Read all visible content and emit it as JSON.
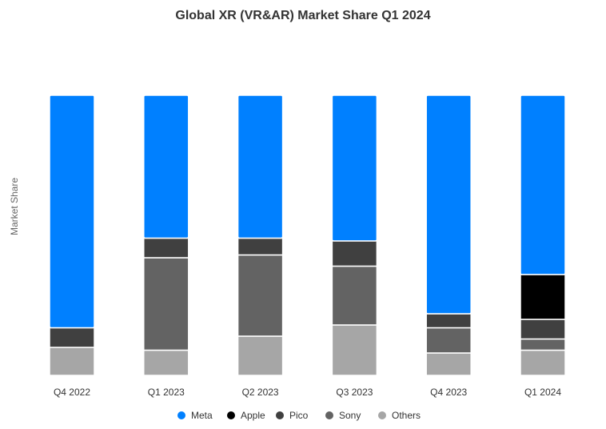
{
  "chart_data": {
    "type": "bar",
    "stacked": true,
    "normalized": true,
    "title": "Global XR (VR&AR) Market Share Q1 2024",
    "xlabel": "",
    "ylabel": "Market Share",
    "ylim": [
      0,
      100
    ],
    "grid": false,
    "legend_position": "bottom",
    "categories": [
      "Q4 2022",
      "Q1 2023",
      "Q2 2023",
      "Q3 2023",
      "Q4 2023",
      "Q1 2024"
    ],
    "series": [
      {
        "name": "Others",
        "color": "#a6a6a6",
        "values": [
          10,
          9,
          14,
          18,
          8,
          9
        ]
      },
      {
        "name": "Sony",
        "color": "#636363",
        "values": [
          0,
          33,
          29,
          21,
          9,
          4
        ]
      },
      {
        "name": "Pico",
        "color": "#404040",
        "values": [
          7,
          7,
          6,
          9,
          5,
          7
        ]
      },
      {
        "name": "Apple",
        "color": "#000000",
        "values": [
          0,
          0,
          0,
          0,
          0,
          16
        ]
      },
      {
        "name": "Meta",
        "color": "#0080ff",
        "values": [
          83,
          51,
          51,
          52,
          78,
          64
        ]
      }
    ],
    "legend_order": [
      "Meta",
      "Apple",
      "Pico",
      "Sony",
      "Others"
    ]
  }
}
